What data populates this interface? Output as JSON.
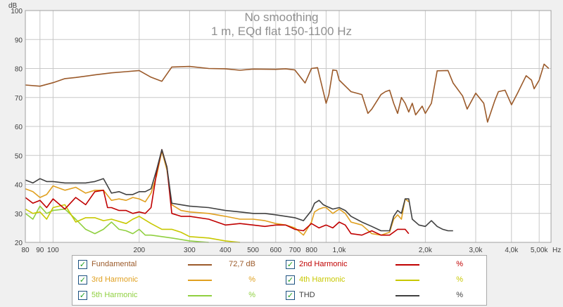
{
  "colors": {
    "fundamental": "#9b5a2a",
    "h2": "#c00000",
    "h3": "#e0a020",
    "h4": "#c8c800",
    "h5": "#90d040",
    "thd": "#404040",
    "grid": "#c8c8c8",
    "plot_bg": "#ffffff",
    "title": "#909090",
    "axis_text": "#404040"
  },
  "chart_data": {
    "type": "line",
    "title": "No smoothing",
    "subtitle": "1 m, EQd flat 150-1100 Hz",
    "xlabel": "Hz",
    "ylabel": "dB",
    "xscale": "log",
    "xlim": [
      80,
      5500
    ],
    "ylim": [
      20,
      100
    ],
    "x_tick_labels": [
      "80",
      "90",
      "100",
      "200",
      "300",
      "400",
      "500",
      "600",
      "700",
      "800",
      "1,0k",
      "2,0k",
      "3,0k",
      "4,0k",
      "5,00k"
    ],
    "x_tick_values": [
      80,
      90,
      100,
      200,
      300,
      400,
      500,
      600,
      700,
      800,
      1000,
      2000,
      3000,
      4000,
      5000
    ],
    "y_ticks": [
      20,
      30,
      40,
      50,
      60,
      70,
      80,
      90,
      100
    ],
    "grid": true,
    "series": [
      {
        "name": "Fundamental",
        "color_key": "fundamental",
        "points": [
          [
            80,
            74.3
          ],
          [
            90,
            73.9
          ],
          [
            100,
            75.1
          ],
          [
            110,
            76.5
          ],
          [
            120,
            76.9
          ],
          [
            140,
            77.8
          ],
          [
            160,
            78.5
          ],
          [
            180,
            78.9
          ],
          [
            200,
            79.3
          ],
          [
            220,
            77
          ],
          [
            240,
            75.6
          ],
          [
            260,
            80.5
          ],
          [
            300,
            80.7
          ],
          [
            350,
            80
          ],
          [
            400,
            79.9
          ],
          [
            450,
            79.4
          ],
          [
            500,
            79.8
          ],
          [
            600,
            79.7
          ],
          [
            650,
            79.9
          ],
          [
            700,
            79.5
          ],
          [
            760,
            75
          ],
          [
            800,
            80
          ],
          [
            840,
            80.3
          ],
          [
            870,
            74
          ],
          [
            900,
            68
          ],
          [
            920,
            71
          ],
          [
            950,
            79.5
          ],
          [
            980,
            79.3
          ],
          [
            1000,
            76
          ],
          [
            1100,
            72
          ],
          [
            1200,
            71
          ],
          [
            1260,
            64.5
          ],
          [
            1300,
            66
          ],
          [
            1400,
            71
          ],
          [
            1450,
            72
          ],
          [
            1500,
            72.5
          ],
          [
            1550,
            68
          ],
          [
            1600,
            64.5
          ],
          [
            1650,
            70
          ],
          [
            1700,
            68
          ],
          [
            1750,
            65
          ],
          [
            1800,
            68
          ],
          [
            1850,
            64
          ],
          [
            1950,
            67
          ],
          [
            2000,
            64.5
          ],
          [
            2100,
            68
          ],
          [
            2200,
            79.2
          ],
          [
            2400,
            79.3
          ],
          [
            2500,
            75
          ],
          [
            2700,
            70.5
          ],
          [
            2800,
            66
          ],
          [
            3000,
            71.5
          ],
          [
            3200,
            68
          ],
          [
            3300,
            61.5
          ],
          [
            3500,
            69
          ],
          [
            3600,
            72
          ],
          [
            3800,
            72.5
          ],
          [
            4000,
            67.5
          ],
          [
            4200,
            71.5
          ],
          [
            4500,
            77.5
          ],
          [
            4700,
            76
          ],
          [
            4800,
            73
          ],
          [
            5000,
            76
          ],
          [
            5200,
            81.5
          ],
          [
            5400,
            80
          ]
        ]
      },
      {
        "name": "2nd Harmonic",
        "color_key": "h2",
        "points": [
          [
            80,
            35.5
          ],
          [
            85,
            33.5
          ],
          [
            90,
            34.5
          ],
          [
            95,
            32
          ],
          [
            100,
            35
          ],
          [
            110,
            31.5
          ],
          [
            120,
            35.5
          ],
          [
            130,
            33
          ],
          [
            140,
            37.5
          ],
          [
            150,
            38
          ],
          [
            155,
            32
          ],
          [
            160,
            32
          ],
          [
            170,
            31
          ],
          [
            180,
            31
          ],
          [
            190,
            30
          ],
          [
            200,
            30.5
          ],
          [
            210,
            30
          ],
          [
            220,
            32
          ],
          [
            230,
            44
          ],
          [
            240,
            52
          ],
          [
            250,
            46
          ],
          [
            260,
            30
          ],
          [
            280,
            29
          ],
          [
            300,
            29
          ],
          [
            350,
            28
          ],
          [
            400,
            26
          ],
          [
            450,
            26.5
          ],
          [
            500,
            26
          ],
          [
            550,
            25.5
          ],
          [
            600,
            26
          ],
          [
            650,
            26
          ],
          [
            700,
            24.5
          ],
          [
            750,
            24
          ],
          [
            800,
            26.5
          ],
          [
            850,
            25
          ],
          [
            900,
            26
          ],
          [
            950,
            25
          ],
          [
            1000,
            27
          ],
          [
            1050,
            26
          ],
          [
            1100,
            23
          ],
          [
            1200,
            22.5
          ],
          [
            1300,
            24
          ],
          [
            1400,
            22.5
          ],
          [
            1500,
            22.5
          ],
          [
            1600,
            24.5
          ],
          [
            1700,
            24.5
          ],
          [
            1750,
            23
          ]
        ]
      },
      {
        "name": "3rd Harmonic",
        "color_key": "h3",
        "points": [
          [
            80,
            38.5
          ],
          [
            85,
            37.5
          ],
          [
            90,
            35.5
          ],
          [
            95,
            36.5
          ],
          [
            100,
            39.5
          ],
          [
            110,
            38
          ],
          [
            120,
            39
          ],
          [
            130,
            37
          ],
          [
            140,
            38
          ],
          [
            150,
            38
          ],
          [
            160,
            34.5
          ],
          [
            170,
            35
          ],
          [
            180,
            34.5
          ],
          [
            190,
            35.5
          ],
          [
            200,
            35
          ],
          [
            210,
            34
          ],
          [
            220,
            37
          ],
          [
            230,
            43
          ],
          [
            240,
            51.5
          ],
          [
            250,
            45
          ],
          [
            260,
            33
          ],
          [
            280,
            31
          ],
          [
            300,
            30.5
          ],
          [
            350,
            30
          ],
          [
            400,
            29
          ],
          [
            450,
            28
          ],
          [
            500,
            28
          ],
          [
            550,
            27.5
          ],
          [
            600,
            26.5
          ],
          [
            650,
            26
          ],
          [
            700,
            25
          ],
          [
            750,
            22.5
          ],
          [
            800,
            27
          ],
          [
            820,
            30.5
          ],
          [
            850,
            31.5
          ],
          [
            880,
            32
          ],
          [
            900,
            32
          ],
          [
            950,
            30
          ],
          [
            1000,
            31.5
          ],
          [
            1050,
            30
          ],
          [
            1100,
            27
          ],
          [
            1200,
            26
          ],
          [
            1300,
            23
          ],
          [
            1400,
            22.5
          ],
          [
            1500,
            23.5
          ],
          [
            1550,
            28
          ],
          [
            1600,
            29.5
          ],
          [
            1650,
            28
          ],
          [
            1700,
            35
          ],
          [
            1750,
            34
          ]
        ]
      },
      {
        "name": "4th Harmonic",
        "color_key": "h4",
        "points": [
          [
            80,
            31.5
          ],
          [
            85,
            30
          ],
          [
            90,
            30.5
          ],
          [
            95,
            28
          ],
          [
            100,
            32
          ],
          [
            110,
            33
          ],
          [
            120,
            27
          ],
          [
            130,
            28.5
          ],
          [
            140,
            28.5
          ],
          [
            150,
            27.5
          ],
          [
            160,
            28
          ],
          [
            180,
            26.5
          ],
          [
            190,
            28
          ],
          [
            200,
            29
          ],
          [
            220,
            26.5
          ],
          [
            240,
            24.5
          ],
          [
            260,
            24.5
          ],
          [
            280,
            23.5
          ],
          [
            300,
            22
          ],
          [
            350,
            21.5
          ],
          [
            400,
            20.5
          ],
          [
            450,
            20
          ]
        ]
      },
      {
        "name": "5th Harmonic",
        "color_key": "h5",
        "points": [
          [
            80,
            30
          ],
          [
            85,
            28
          ],
          [
            90,
            32.5
          ],
          [
            95,
            30
          ],
          [
            100,
            31
          ],
          [
            110,
            31.5
          ],
          [
            120,
            28
          ],
          [
            130,
            24.5
          ],
          [
            140,
            23
          ],
          [
            150,
            24.5
          ],
          [
            160,
            27
          ],
          [
            170,
            24.5
          ],
          [
            180,
            24
          ],
          [
            190,
            23
          ],
          [
            200,
            24.5
          ],
          [
            210,
            22.5
          ],
          [
            220,
            22.5
          ],
          [
            240,
            22
          ],
          [
            260,
            21.5
          ],
          [
            280,
            21
          ],
          [
            300,
            20.5
          ],
          [
            350,
            20
          ]
        ]
      },
      {
        "name": "THD",
        "color_key": "thd",
        "points": [
          [
            80,
            41.5
          ],
          [
            85,
            40.5
          ],
          [
            90,
            42
          ],
          [
            95,
            41
          ],
          [
            100,
            41
          ],
          [
            110,
            40.5
          ],
          [
            120,
            40.5
          ],
          [
            130,
            40.5
          ],
          [
            140,
            41
          ],
          [
            150,
            42
          ],
          [
            160,
            37
          ],
          [
            170,
            37.5
          ],
          [
            180,
            36.5
          ],
          [
            190,
            36.5
          ],
          [
            200,
            37.5
          ],
          [
            210,
            37.5
          ],
          [
            220,
            38.5
          ],
          [
            230,
            45
          ],
          [
            240,
            52
          ],
          [
            250,
            46
          ],
          [
            260,
            33.5
          ],
          [
            280,
            33
          ],
          [
            300,
            32.5
          ],
          [
            350,
            32
          ],
          [
            400,
            31
          ],
          [
            450,
            30.5
          ],
          [
            500,
            30
          ],
          [
            550,
            30
          ],
          [
            600,
            29.5
          ],
          [
            650,
            29
          ],
          [
            700,
            28.5
          ],
          [
            750,
            27.5
          ],
          [
            800,
            31
          ],
          [
            820,
            33.5
          ],
          [
            850,
            34.5
          ],
          [
            880,
            33
          ],
          [
            900,
            32.5
          ],
          [
            950,
            31.5
          ],
          [
            1000,
            32
          ],
          [
            1050,
            31
          ],
          [
            1100,
            29
          ],
          [
            1200,
            27
          ],
          [
            1300,
            25.5
          ],
          [
            1400,
            24
          ],
          [
            1500,
            24
          ],
          [
            1550,
            29
          ],
          [
            1600,
            31
          ],
          [
            1650,
            30
          ],
          [
            1700,
            35
          ],
          [
            1750,
            35
          ],
          [
            1800,
            28
          ],
          [
            1900,
            26
          ],
          [
            2000,
            25.5
          ],
          [
            2100,
            27.5
          ],
          [
            2200,
            25.5
          ],
          [
            2300,
            24.5
          ],
          [
            2400,
            24
          ],
          [
            2500,
            24
          ]
        ]
      }
    ]
  },
  "legend": {
    "entries": [
      {
        "name": "Fundamental",
        "value": "72,7 dB",
        "checked": "✓",
        "color_key": "fundamental"
      },
      {
        "name": "2nd Harmonic",
        "value": "%",
        "checked": "✓",
        "color_key": "h2"
      },
      {
        "name": "3rd Harmonic",
        "value": "%",
        "checked": "✓",
        "color_key": "h3"
      },
      {
        "name": "4th Harmonic",
        "value": "%",
        "checked": "✓",
        "color_key": "h4"
      },
      {
        "name": "5th Harmonic",
        "value": "%",
        "checked": "✓",
        "color_key": "h5"
      },
      {
        "name": "THD",
        "value": "%",
        "checked": "✓",
        "color_key": "thd"
      }
    ]
  }
}
